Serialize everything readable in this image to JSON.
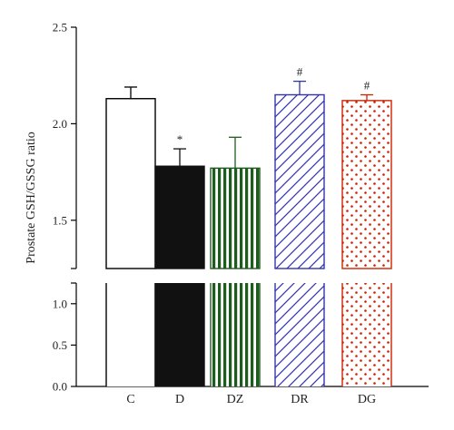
{
  "chart_data": {
    "type": "bar",
    "categories": [
      "C",
      "D",
      "DZ",
      "DR",
      "DG"
    ],
    "values": [
      2.13,
      1.78,
      1.77,
      2.15,
      2.12
    ],
    "errors": [
      0.06,
      0.09,
      0.16,
      0.07,
      0.03
    ],
    "annotations": [
      "",
      "*",
      "",
      "#",
      "#"
    ],
    "fills": [
      "none",
      "solid",
      "vertical-lines",
      "diagonal-lines",
      "dots"
    ],
    "colors": [
      "#000000",
      "#111111",
      "#1e5c1e",
      "#3333aa",
      "#cc2200"
    ],
    "ylabel": "Prostate GSH/GSSG ratio",
    "xlabel": "",
    "title": "",
    "axis_break": true,
    "lower_segment": {
      "ylim": [
        0.0,
        1.25
      ],
      "ticks": [
        "0.0",
        "0.5",
        "1.0"
      ]
    },
    "upper_segment": {
      "ylim": [
        1.25,
        2.5
      ],
      "ticks": [
        "1.5",
        "2.0",
        "2.5"
      ]
    },
    "grid": false,
    "legend": "none"
  }
}
